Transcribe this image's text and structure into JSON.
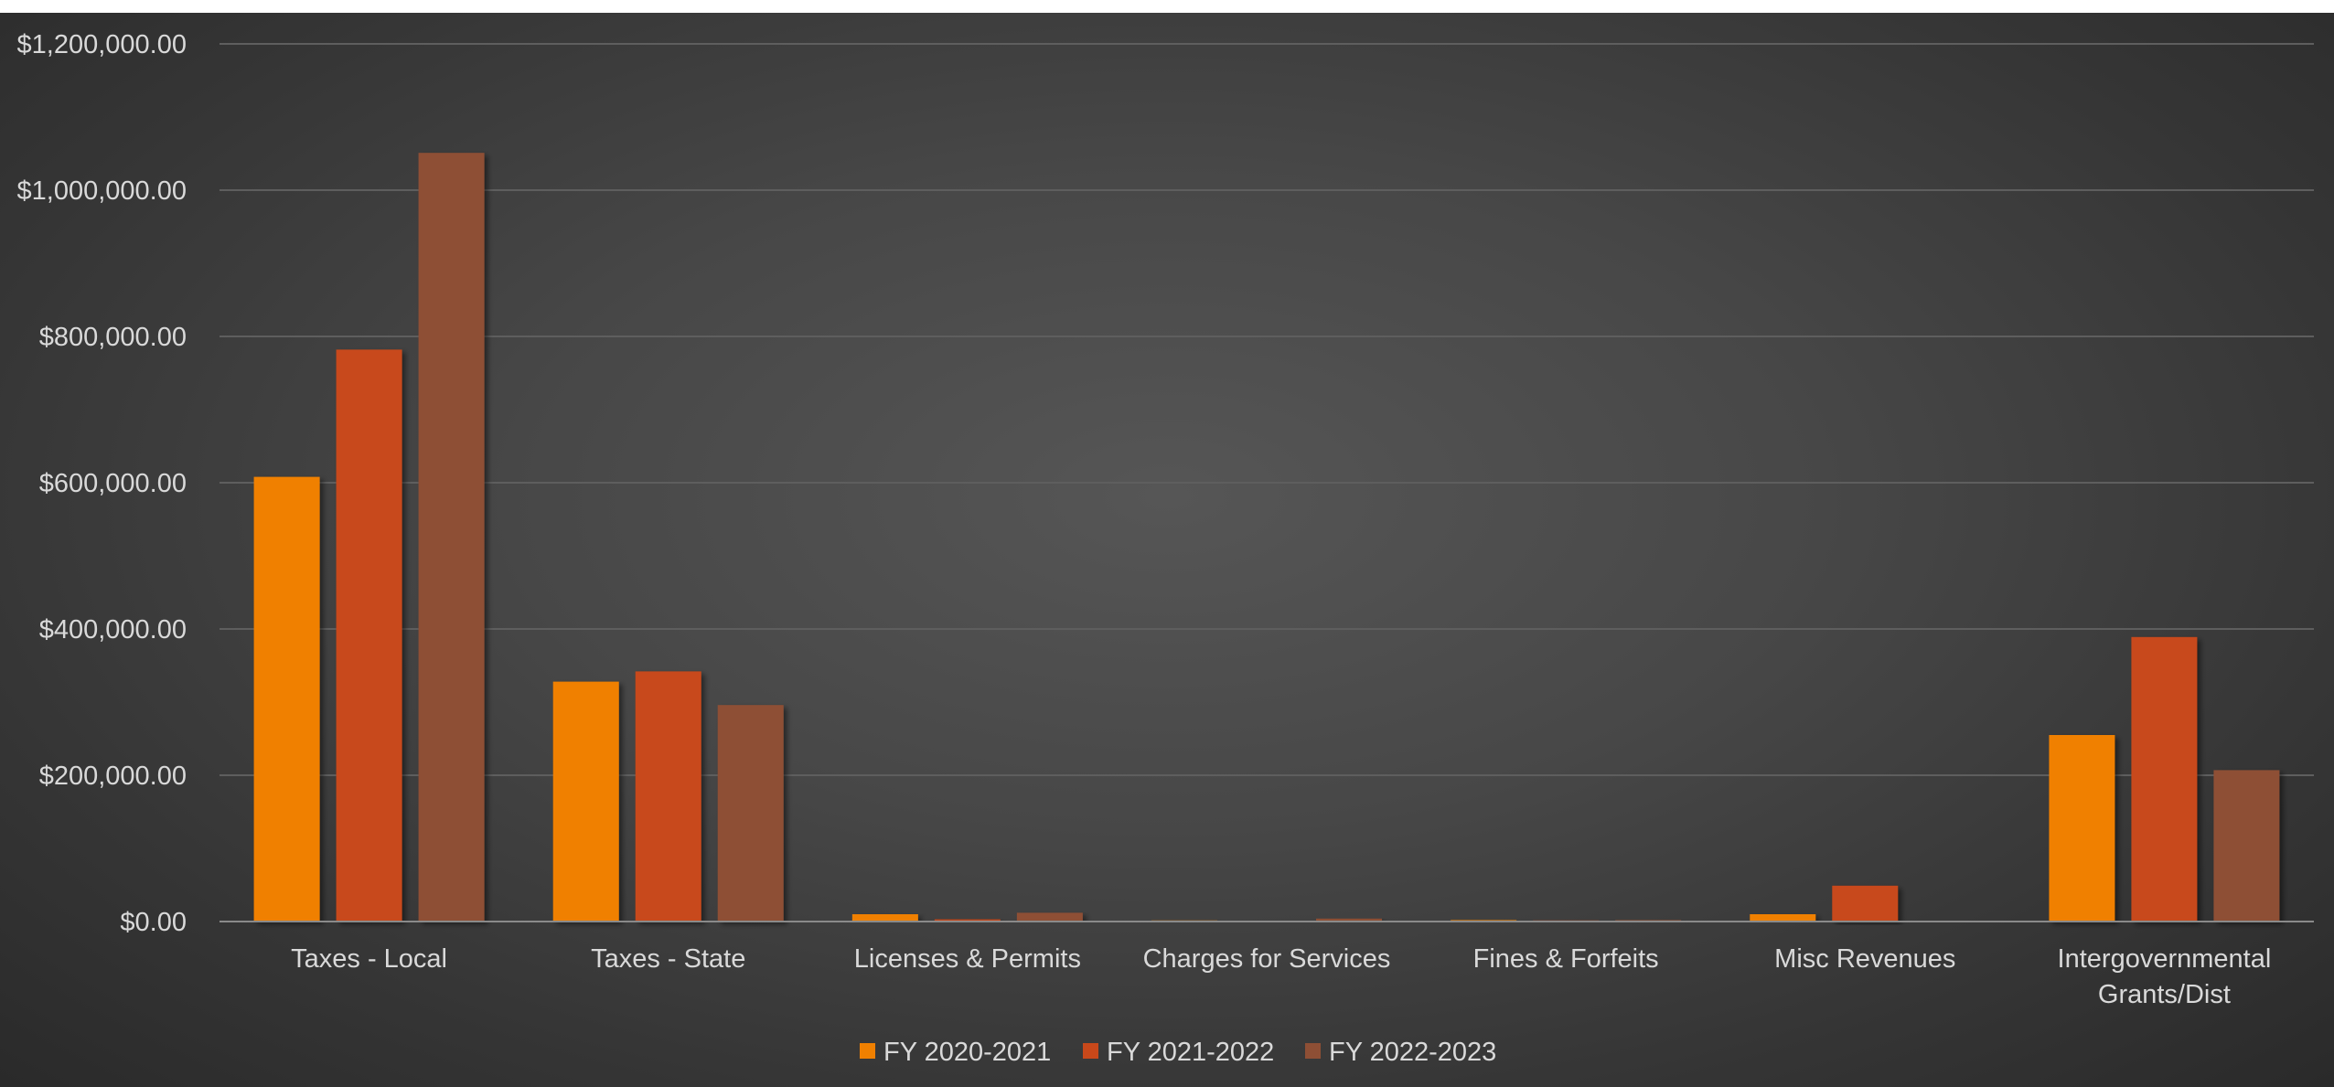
{
  "chart_data": {
    "type": "bar",
    "title": "",
    "xlabel": "",
    "ylabel": "",
    "categories": [
      [
        "Taxes - Local"
      ],
      [
        "Taxes - State"
      ],
      [
        "Licenses & Permits"
      ],
      [
        "Charges for Services"
      ],
      [
        "Fines & Forfeits"
      ],
      [
        "Misc Revenues"
      ],
      [
        "Intergovernmental",
        "Grants/Dist"
      ]
    ],
    "series": [
      {
        "name": "FY 2020-2021",
        "color": "#F08000",
        "values": [
          608000,
          328000,
          10000,
          1500,
          2000,
          10000,
          255000
        ]
      },
      {
        "name": "FY 2021-2022",
        "color": "#C8481A",
        "values": [
          782000,
          342000,
          3000,
          1000,
          1500,
          49000,
          389000
        ]
      },
      {
        "name": "FY 2022-2023",
        "color": "#8E4F35",
        "values": [
          1051000,
          296000,
          12000,
          4000,
          2000,
          1000,
          207000
        ]
      }
    ],
    "ylim": [
      0,
      1200000
    ],
    "yticks": [
      "$0.00",
      "$200,000.00",
      "$400,000.00",
      "$600,000.00",
      "$800,000.00",
      "$1,000,000.00",
      "$1,200,000.00"
    ],
    "grid": true,
    "legend_position": "bottom"
  }
}
